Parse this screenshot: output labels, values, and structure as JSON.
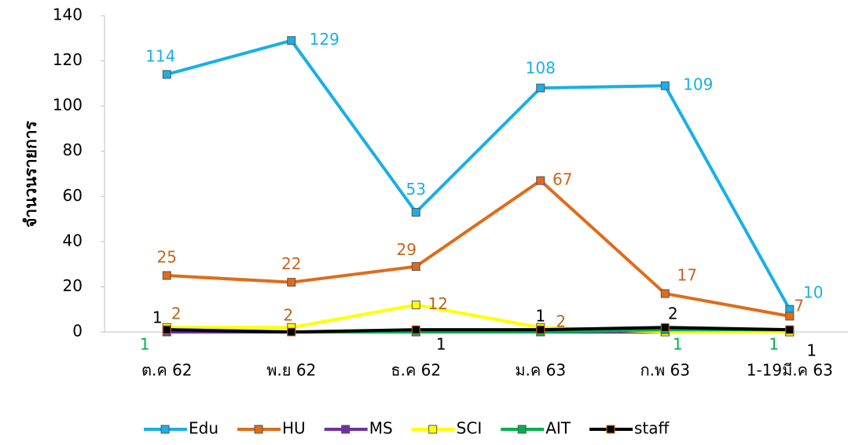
{
  "chart_data": {
    "type": "line",
    "y_label": "จำนวนรายการ",
    "categories": [
      "ต.ค 62",
      "พ.ย 62",
      "ธ.ค 62",
      "ม.ค 63",
      "ก.พ 63",
      "1-19มี.ค 63"
    ],
    "ylim": [
      0,
      140
    ],
    "yticks": [
      0,
      20,
      40,
      60,
      80,
      100,
      120,
      140
    ],
    "legend": "bottom",
    "series": [
      {
        "name": "Edu",
        "color": "#1aafe6",
        "label_color": "#1aafe6",
        "values": [
          114,
          129,
          53,
          108,
          109,
          10
        ],
        "value_labels": [
          "114",
          "129",
          "53",
          "108",
          "109",
          "10"
        ]
      },
      {
        "name": "HU",
        "color": "#e06b1a",
        "label_color": "#c8651d",
        "values": [
          25,
          22,
          29,
          67,
          17,
          7
        ],
        "value_labels": [
          "25",
          "22",
          "29",
          "67",
          "17",
          "7"
        ]
      },
      {
        "name": "MS",
        "color": "#7030a0",
        "label_color": "#7030a0",
        "values": [
          0,
          0,
          0,
          0,
          0,
          0
        ],
        "value_labels": [
          null,
          null,
          null,
          null,
          null,
          null
        ]
      },
      {
        "name": "SCI",
        "color": "#ffff00",
        "label_color": "#b5651d",
        "values": [
          2,
          2,
          12,
          2,
          0,
          0
        ],
        "value_labels": [
          "2",
          "2",
          "12",
          "2",
          null,
          null
        ]
      },
      {
        "name": "AIT",
        "color": "#00b050",
        "label_color": "#00b050",
        "values": [
          1,
          0,
          0,
          0,
          1,
          1
        ],
        "value_labels": [
          "1",
          null,
          null,
          null,
          "1",
          "1"
        ]
      },
      {
        "name": "staff",
        "color": "#000000",
        "label_color": "#000000",
        "values": [
          1,
          0,
          1,
          1,
          2,
          1
        ],
        "value_labels": [
          "1",
          null,
          "1",
          "1",
          "2",
          "1"
        ]
      }
    ]
  }
}
